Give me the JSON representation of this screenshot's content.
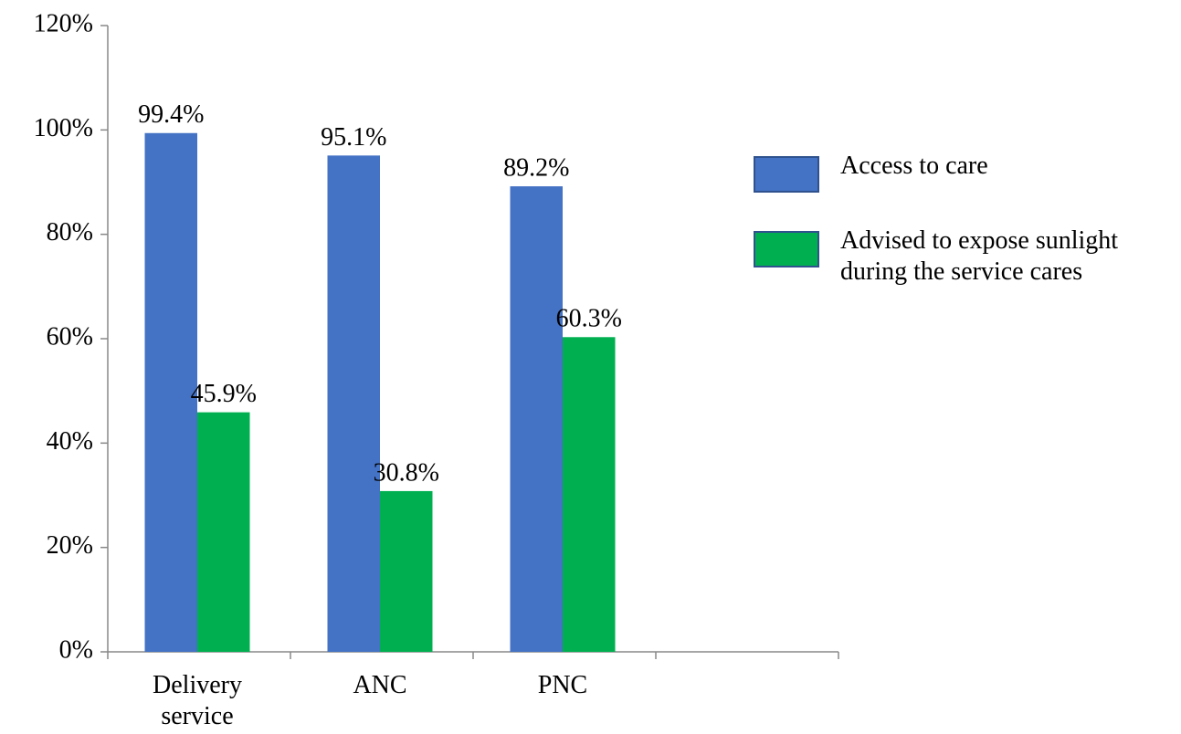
{
  "chart_data": {
    "type": "bar",
    "categories": [
      "Delivery service",
      "ANC",
      "PNC",
      null
    ],
    "series": [
      {
        "name": "Access to care",
        "color": "#4472c4",
        "values": [
          99.4,
          95.1,
          89.2,
          null
        ],
        "value_labels": [
          "99.4%",
          "95.1%",
          "89.2%",
          null
        ]
      },
      {
        "name": "Advised to expose sunlight during the service cares",
        "color": "#00b050",
        "values": [
          45.9,
          30.8,
          60.3,
          null
        ],
        "value_labels": [
          "45.9%",
          "30.8%",
          "60.3%",
          null
        ]
      }
    ],
    "ylim": [
      0,
      120
    ],
    "yticks": [
      {
        "value": 0,
        "label": "0%"
      },
      {
        "value": 20,
        "label": "20%"
      },
      {
        "value": 40,
        "label": "40%"
      },
      {
        "value": 60,
        "label": "60%"
      },
      {
        "value": 80,
        "label": "80%"
      },
      {
        "value": 100,
        "label": "100%"
      },
      {
        "value": 120,
        "label": "120%"
      }
    ],
    "grid": false,
    "legend": "right"
  }
}
